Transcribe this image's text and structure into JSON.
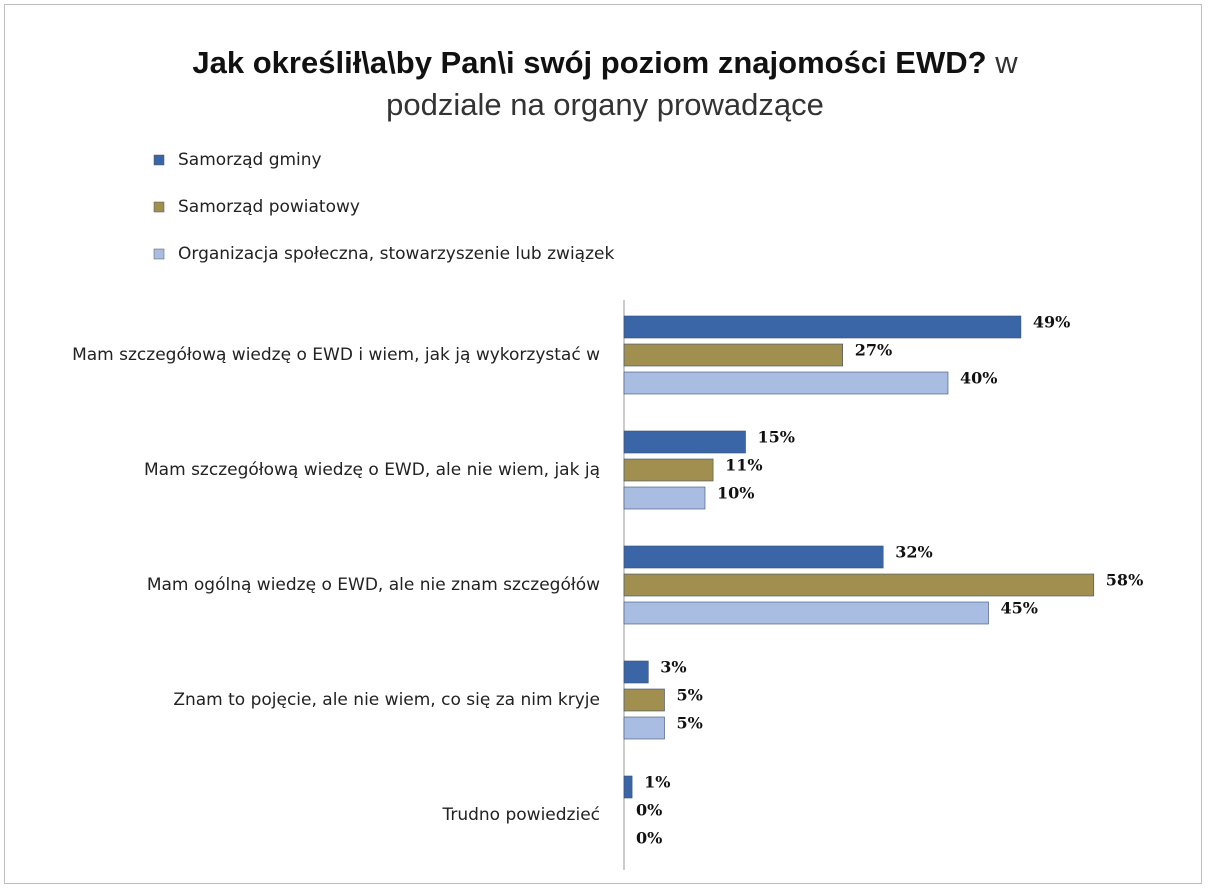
{
  "chart_data": {
    "type": "bar",
    "orientation": "horizontal",
    "title": "Jak określił\\a\\by Pan\\i swój poziom znajomości EWD?",
    "subtitle": "w podziale na organy prowadzące",
    "categories": [
      "Mam szczegółową wiedzę o EWD i wiem, jak ją wykorzystać w",
      "Mam szczegółową wiedzę o EWD, ale nie wiem, jak ją",
      "Mam ogólną wiedzę o EWD, ale nie znam szczegółów",
      "Znam to pojęcie, ale nie wiem, co się za nim kryje",
      "Trudno powiedzieć"
    ],
    "series": [
      {
        "name": "Samorząd gminy",
        "color": "#3a66a8",
        "values": [
          49,
          15,
          32,
          3,
          1
        ],
        "value_labels": [
          "49%",
          "15%",
          "32%",
          "3%",
          "1%"
        ]
      },
      {
        "name": "Samorząd powiatowy",
        "color": "#a08f4e",
        "values": [
          27,
          11,
          58,
          5,
          0
        ],
        "value_labels": [
          "27%",
          "11%",
          "58%",
          "5%",
          "0%"
        ]
      },
      {
        "name": "Organizacja społeczna, stowarzyszenie lub związek",
        "color": "#a9bde2",
        "values": [
          40,
          10,
          45,
          5,
          0
        ],
        "value_labels": [
          "40%",
          "10%",
          "45%",
          "5%",
          "0%"
        ]
      }
    ],
    "xlim": [
      0,
      60
    ]
  }
}
